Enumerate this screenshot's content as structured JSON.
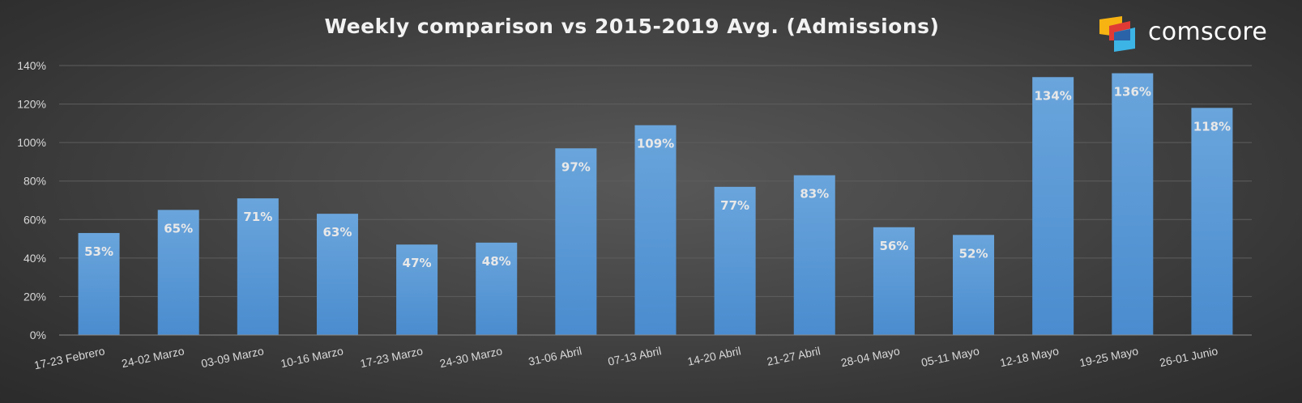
{
  "brand": {
    "name": "comscore",
    "logo_colors": [
      "#f6b312",
      "#e03a35",
      "#3cb4e5",
      "#2a63a8"
    ]
  },
  "chart_data": {
    "type": "bar",
    "title": "Weekly comparison vs 2015-2019 Avg. (Admissions)",
    "xlabel": "",
    "ylabel": "",
    "ylim": [
      0,
      140
    ],
    "yticks": [
      0,
      20,
      40,
      60,
      80,
      100,
      120,
      140
    ],
    "ytick_labels": [
      "0%",
      "20%",
      "40%",
      "60%",
      "80%",
      "100%",
      "120%",
      "140%"
    ],
    "grid": true,
    "legend": "none",
    "bar_color": "#5b9bd5",
    "categories": [
      "17-23 Febrero",
      "24-02 Marzo",
      "03-09 Marzo",
      "10-16 Marzo",
      "17-23 Marzo",
      "24-30 Marzo",
      "31-06 Abril",
      "07-13 Abril",
      "14-20 Abril",
      "21-27 Abril",
      "28-04 Mayo",
      "05-11 Mayo",
      "12-18 Mayo",
      "19-25 Mayo",
      "26-01 Junio"
    ],
    "values": [
      53,
      65,
      71,
      63,
      47,
      48,
      97,
      109,
      77,
      83,
      56,
      52,
      134,
      136,
      118
    ],
    "data_labels": [
      "53%",
      "65%",
      "71%",
      "63%",
      "47%",
      "48%",
      "97%",
      "109%",
      "77%",
      "83%",
      "56%",
      "52%",
      "134%",
      "136%",
      "118%"
    ]
  }
}
